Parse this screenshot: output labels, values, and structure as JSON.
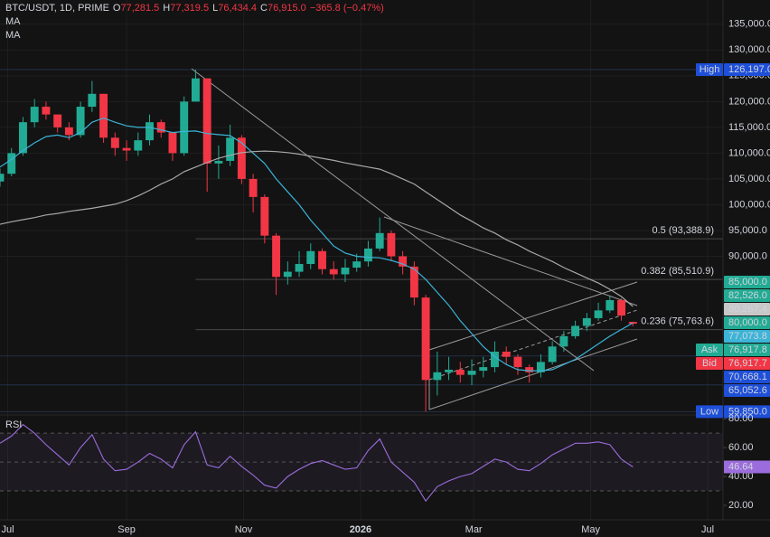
{
  "chart_data": {
    "type": "candlestick",
    "header": {
      "title": "BTC/USDT, 1D, PRIME",
      "ohlc": [
        {
          "key": "O",
          "value": "77,281.5"
        },
        {
          "key": "H",
          "value": "77,319.5"
        },
        {
          "key": "L",
          "value": "76,434.4"
        },
        {
          "key": "C",
          "value": "76,915.0"
        }
      ],
      "change": "−365.8 (−0.47%)"
    },
    "up_color": "#22ab94",
    "down_color": "#f23645",
    "grid": true,
    "xlim": [
      -4,
      373
    ],
    "xticks": [
      {
        "value": 0,
        "label": "Jul"
      },
      {
        "value": 62,
        "label": "Sep"
      },
      {
        "value": 123,
        "label": "Nov"
      },
      {
        "value": 184,
        "label": "2026"
      },
      {
        "value": 243,
        "label": "Mar"
      },
      {
        "value": 304,
        "label": "May"
      },
      {
        "value": 365,
        "label": "Jul"
      }
    ],
    "ylim": [
      59400,
      139700
    ],
    "yticks": [
      {
        "value": 135000,
        "label": "135,000.0"
      },
      {
        "value": 130000,
        "label": "130,000.0"
      },
      {
        "value": 125000,
        "label": "125,000.0"
      },
      {
        "value": 120000,
        "label": "120,000.0"
      },
      {
        "value": 115000,
        "label": "115,000.0"
      },
      {
        "value": 110000,
        "label": "110,000.0"
      },
      {
        "value": 105000,
        "label": "105,000.0"
      },
      {
        "value": 100000,
        "label": "100,000.0"
      },
      {
        "value": 95000,
        "label": "95,000.0"
      },
      {
        "value": 90000,
        "label": "90,000.0"
      }
    ],
    "x": [
      -4,
      2,
      8,
      14,
      20,
      26,
      32,
      38,
      44,
      50,
      56,
      62,
      68,
      74,
      80,
      86,
      92,
      98,
      104,
      110,
      116,
      122,
      128,
      134,
      140,
      146,
      152,
      158,
      164,
      170,
      176,
      182,
      188,
      194,
      200,
      206,
      212,
      218,
      224,
      230,
      236,
      242,
      248,
      254,
      260,
      266,
      272,
      278,
      284,
      290,
      296,
      302,
      308,
      314,
      320,
      326
    ],
    "open": [
      104500,
      106000,
      110000,
      116000,
      119000,
      117500,
      115000,
      113500,
      119000,
      121500,
      113000,
      111000,
      110500,
      112500,
      116000,
      114000,
      110000,
      120000,
      124500,
      108000,
      108500,
      113000,
      105000,
      101500,
      94000,
      86000,
      87000,
      88500,
      91000,
      87500,
      86500,
      87800,
      89000,
      91500,
      94500,
      90000,
      88000,
      82000,
      66000,
      67500,
      68000,
      67000,
      67800,
      68500,
      71500,
      70500,
      68500,
      67500,
      69500,
      72500,
      74500,
      76500,
      78000,
      79500,
      81500,
      77281.5
    ],
    "high": [
      107000,
      111000,
      117000,
      120500,
      120000,
      117500,
      116000,
      120000,
      124000,
      121500,
      114000,
      112500,
      114000,
      117500,
      116500,
      114000,
      121000,
      126197,
      124500,
      111500,
      115500,
      113500,
      106000,
      102000,
      94500,
      89000,
      91000,
      92500,
      91500,
      89000,
      89500,
      90500,
      93000,
      97500,
      95000,
      91000,
      89000,
      82500,
      71500,
      70500,
      69500,
      70000,
      70500,
      73500,
      72500,
      71000,
      69000,
      71000,
      73500,
      75500,
      77500,
      79000,
      81000,
      82400,
      81800,
      77319.5
    ],
    "low": [
      103500,
      105500,
      109500,
      115000,
      116500,
      114000,
      112500,
      113000,
      118000,
      112000,
      109500,
      108500,
      109500,
      111500,
      113000,
      108500,
      109500,
      120000,
      102500,
      105000,
      107500,
      104000,
      98500,
      92500,
      82500,
      84500,
      86000,
      87500,
      86500,
      85500,
      85000,
      87000,
      88000,
      91000,
      89000,
      86500,
      80500,
      59850,
      63000,
      66000,
      65500,
      65000,
      66500,
      67500,
      69000,
      67000,
      65500,
      66500,
      69000,
      71500,
      74000,
      75500,
      77500,
      79000,
      77500,
      76434.4
    ],
    "close": [
      106000,
      110000,
      116000,
      119000,
      117500,
      115000,
      113500,
      119000,
      121500,
      113000,
      111000,
      110500,
      112500,
      116000,
      114000,
      110000,
      120000,
      124500,
      108000,
      108500,
      113000,
      105000,
      101500,
      94000,
      86000,
      87000,
      88500,
      91000,
      87500,
      86500,
      87800,
      89000,
      91500,
      94500,
      90000,
      88000,
      82000,
      66000,
      67500,
      68000,
      67000,
      67800,
      68500,
      71500,
      70500,
      68500,
      67500,
      69500,
      72500,
      74500,
      76500,
      78000,
      79500,
      81500,
      78500,
      76915
    ],
    "series": [
      {
        "name": "MA",
        "color": "#3bb4d8",
        "values": [
          107300,
          108800,
          110500,
          112000,
          113200,
          113500,
          113000,
          114000,
          116000,
          116800,
          116000,
          115300,
          115000,
          115000,
          114500,
          114000,
          114200,
          114300,
          113800,
          113600,
          113400,
          112000,
          110000,
          108000,
          105000,
          102500,
          100000,
          97000,
          94500,
          92000,
          90600,
          90000,
          89800,
          89700,
          89200,
          88500,
          87500,
          85500,
          83000,
          80500,
          77500,
          75000,
          72500,
          70500,
          69000,
          68000,
          67800,
          67800,
          68000,
          69000,
          70000,
          71500,
          73000,
          74500,
          75800,
          77073.8
        ]
      },
      {
        "name": "MA",
        "color": "#a8a8a8",
        "values": [
          96200,
          96700,
          97100,
          97500,
          98000,
          98300,
          98700,
          99000,
          99300,
          99700,
          100100,
          100800,
          101700,
          102800,
          104000,
          105000,
          106400,
          107300,
          108200,
          109000,
          109600,
          110100,
          110300,
          110400,
          110300,
          110100,
          109800,
          109400,
          109000,
          108600,
          108100,
          107700,
          107300,
          106900,
          106000,
          105000,
          104000,
          102500,
          101000,
          99500,
          98000,
          96800,
          95500,
          94500,
          93200,
          92200,
          91000,
          90000,
          89000,
          87800,
          86800,
          85800,
          84800,
          83600,
          82200,
          80267.4
        ]
      }
    ],
    "fib": [
      {
        "value": 93388.9,
        "label": "0.5 (93,388.9)"
      },
      {
        "value": 85510.9,
        "label": "0.382 (85,510.9)"
      },
      {
        "value": 75763.6,
        "label": "0.236 (75,763.6)"
      }
    ],
    "badges": [
      {
        "tag": "High",
        "value": 126197,
        "label": "126,197.0",
        "color": "#1e4fd8",
        "line": true
      },
      {
        "value": 85000,
        "label": "85,000.0",
        "color": "#22ab94"
      },
      {
        "value": 82526,
        "label": "82,526.0",
        "color": "#22ab94"
      },
      {
        "value": 80267.4,
        "label": "80,267.4",
        "color": "#c8c8c8"
      },
      {
        "value": 80000,
        "label": "80,000.0",
        "color": "#22ab94"
      },
      {
        "value": 77073.8,
        "label": "77,073.8",
        "color": "#3bb4d8"
      },
      {
        "tag": "Ask",
        "value": 76917.8,
        "label": "76,917.8",
        "color": "#22ab94"
      },
      {
        "tag": "Bid",
        "value": 76917.7,
        "label": "76,917.7",
        "color": "#f23645"
      },
      {
        "value": 70668.1,
        "label": "70,668.1",
        "color": "#1e4fd8",
        "line": true
      },
      {
        "value": 65052.6,
        "label": "65,052.6",
        "color": "#1e4fd8",
        "line": true
      },
      {
        "tag": "Low",
        "value": 59850,
        "label": "59,850.0",
        "color": "#1e4fd8",
        "line": true
      }
    ],
    "rsi": {
      "name": "RSI",
      "color": "#9b6ddc",
      "values": [
        63,
        68,
        76,
        70,
        62,
        55,
        48,
        60,
        69,
        52,
        44,
        45,
        50,
        56,
        52,
        46,
        62,
        71,
        48,
        46,
        54,
        47,
        41,
        34,
        32,
        40,
        45,
        49,
        51,
        48,
        45,
        46,
        58,
        66,
        50,
        43,
        36,
        23,
        33,
        37,
        40,
        42,
        47,
        52,
        50,
        45,
        44,
        49,
        55,
        59,
        63,
        63,
        64,
        62,
        52,
        46.64
      ],
      "ylim": [
        10,
        82
      ],
      "levels": [
        70,
        50,
        30
      ],
      "yticks": [
        {
          "value": 80,
          "label": "80.00"
        },
        {
          "value": 60,
          "label": "60.00"
        },
        {
          "value": 40,
          "label": "40.00"
        },
        {
          "value": 20,
          "label": "20.00"
        }
      ]
    }
  }
}
